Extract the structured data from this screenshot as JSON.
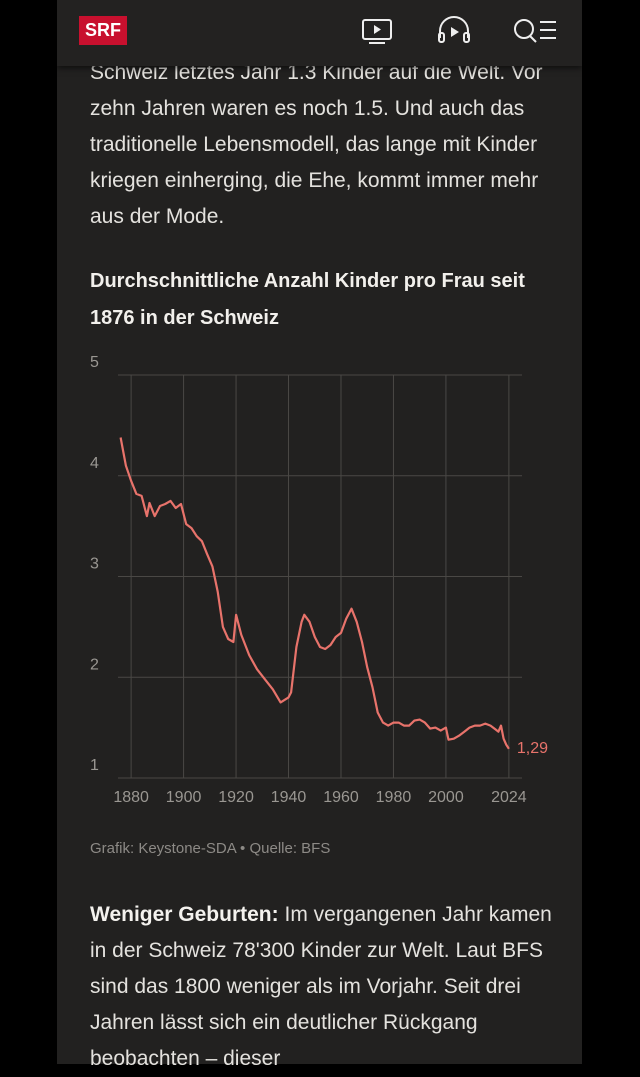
{
  "header": {
    "logo": "SRF"
  },
  "article": {
    "intro": "Schweiz letztes Jahr 1.3 Kinder auf die Welt. Vor zehn Jahren waren es noch 1.5. Und auch das traditionelle Lebensmodell, das lange mit Kinder kriegen einherging, die Ehe, kommt immer mehr aus der Mode.",
    "source": "Grafik: Keystone-SDA • Quelle: BFS",
    "lead": "Weniger Geburten:",
    "body": "Im vergangenen Jahr kamen in der Schweiz 78'300 Kinder zur Welt. Laut BFS sind das 1800 weniger als im Vorjahr. Seit drei Jahren lässt sich ein deutlicher Rückgang beobachten – dieser"
  },
  "chart_data": {
    "type": "line",
    "title": "Durchschnittliche Anzahl Kinder pro Frau seit 1876 in der Schweiz",
    "x": [
      1876,
      1878,
      1880,
      1882,
      1884,
      1886,
      1887,
      1889,
      1891,
      1893,
      1895,
      1897,
      1899,
      1901,
      1903,
      1905,
      1907,
      1909,
      1911,
      1913,
      1915,
      1917,
      1919,
      1920,
      1922,
      1925,
      1928,
      1931,
      1934,
      1937,
      1940,
      1941,
      1943,
      1945,
      1946,
      1948,
      1950,
      1952,
      1954,
      1956,
      1958,
      1960,
      1962,
      1964,
      1966,
      1968,
      1970,
      1972,
      1974,
      1976,
      1978,
      1980,
      1982,
      1984,
      1986,
      1988,
      1990,
      1992,
      1994,
      1996,
      1998,
      2000,
      2001,
      2003,
      2005,
      2007,
      2009,
      2011,
      2013,
      2015,
      2017,
      2019,
      2020,
      2021,
      2022,
      2023,
      2024
    ],
    "series": [
      {
        "name": "Kinder pro Frau",
        "color": "#e8736b",
        "values": [
          4.38,
          4.1,
          3.95,
          3.82,
          3.8,
          3.6,
          3.73,
          3.6,
          3.7,
          3.72,
          3.75,
          3.68,
          3.72,
          3.52,
          3.48,
          3.4,
          3.35,
          3.22,
          3.1,
          2.85,
          2.5,
          2.38,
          2.35,
          2.62,
          2.42,
          2.22,
          2.08,
          1.98,
          1.88,
          1.75,
          1.8,
          1.85,
          2.3,
          2.55,
          2.62,
          2.55,
          2.4,
          2.3,
          2.28,
          2.32,
          2.4,
          2.44,
          2.58,
          2.68,
          2.55,
          2.35,
          2.1,
          1.9,
          1.65,
          1.55,
          1.52,
          1.55,
          1.55,
          1.52,
          1.52,
          1.57,
          1.58,
          1.55,
          1.49,
          1.5,
          1.47,
          1.5,
          1.38,
          1.39,
          1.42,
          1.46,
          1.5,
          1.52,
          1.52,
          1.54,
          1.52,
          1.48,
          1.46,
          1.52,
          1.39,
          1.33,
          1.29
        ],
        "value_labels": [
          null,
          null,
          null,
          null,
          null,
          null,
          null,
          null,
          null,
          null,
          null,
          null,
          null,
          null,
          null,
          null,
          null,
          null,
          null,
          null,
          null,
          null,
          null,
          null,
          null,
          null,
          null,
          null,
          null,
          null,
          null,
          null,
          null,
          null,
          null,
          null,
          null,
          null,
          null,
          null,
          null,
          null,
          null,
          null,
          null,
          null,
          null,
          null,
          null,
          null,
          null,
          null,
          null,
          null,
          null,
          null,
          null,
          null,
          null,
          null,
          null,
          null,
          null,
          null,
          null,
          null,
          null,
          null,
          null,
          null,
          null,
          null,
          null,
          null,
          null,
          null,
          "1,29"
        ]
      }
    ],
    "xlim": [
      1875,
      2029
    ],
    "xticks": [
      1880,
      1900,
      1920,
      1940,
      1960,
      1980,
      2000,
      2024
    ],
    "ylim": [
      1,
      5
    ],
    "yticks": [
      1,
      2,
      3,
      4,
      5
    ],
    "grid": true
  }
}
